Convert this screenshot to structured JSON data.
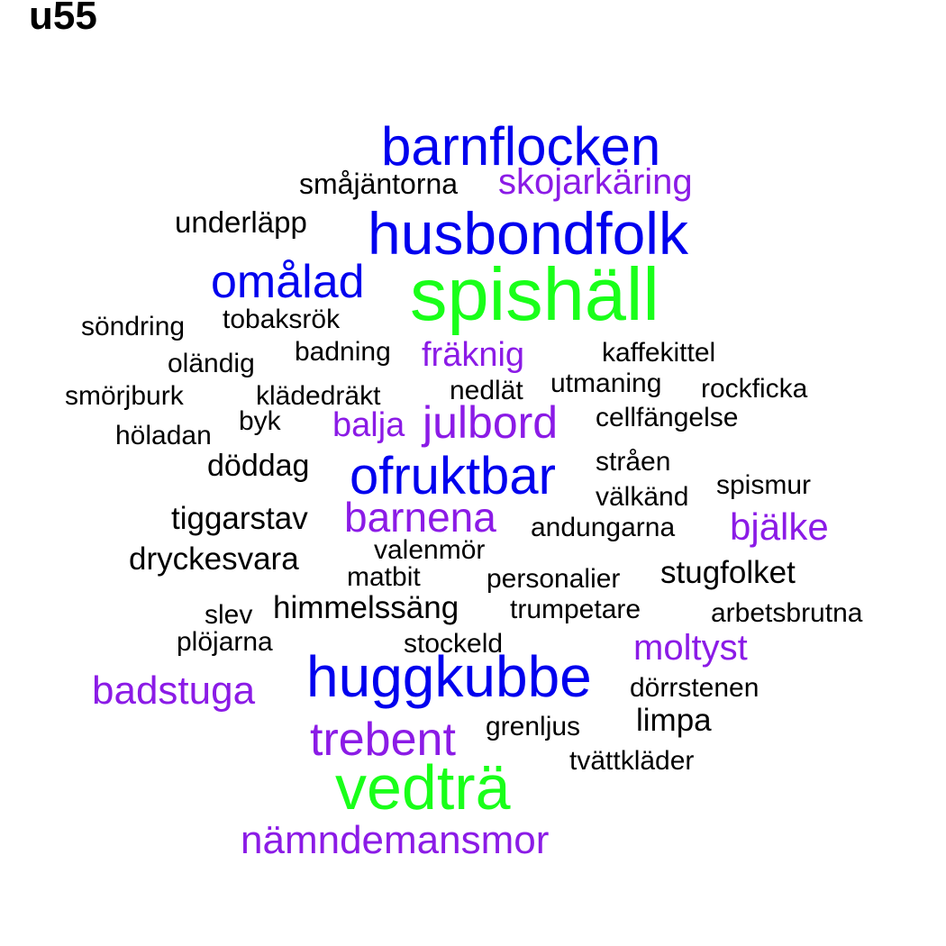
{
  "title": "u55",
  "colors": {
    "black": "#000000",
    "purple": "#8b1be6",
    "blue": "#0000ee",
    "green": "#19ff19"
  },
  "words": [
    {
      "text": "barnflocken",
      "color": "blue"
    },
    {
      "text": "småjäntorna",
      "color": "black"
    },
    {
      "text": "skojarkäring",
      "color": "purple"
    },
    {
      "text": "underläpp",
      "color": "black"
    },
    {
      "text": "husbondfolk",
      "color": "blue"
    },
    {
      "text": "omålad",
      "color": "blue"
    },
    {
      "text": "spishäll",
      "color": "green"
    },
    {
      "text": "söndring",
      "color": "black"
    },
    {
      "text": "tobaksrök",
      "color": "black"
    },
    {
      "text": "badning",
      "color": "black"
    },
    {
      "text": "fräknig",
      "color": "purple"
    },
    {
      "text": "kaffekittel",
      "color": "black"
    },
    {
      "text": "oländig",
      "color": "black"
    },
    {
      "text": "utmaning",
      "color": "black"
    },
    {
      "text": "rockficka",
      "color": "black"
    },
    {
      "text": "smörjburk",
      "color": "black"
    },
    {
      "text": "klädedräkt",
      "color": "black"
    },
    {
      "text": "nedlät",
      "color": "black"
    },
    {
      "text": "byk",
      "color": "black"
    },
    {
      "text": "balja",
      "color": "purple"
    },
    {
      "text": "julbord",
      "color": "purple"
    },
    {
      "text": "cellfängelse",
      "color": "black"
    },
    {
      "text": "höladan",
      "color": "black"
    },
    {
      "text": "döddag",
      "color": "black"
    },
    {
      "text": "ofruktbar",
      "color": "blue"
    },
    {
      "text": "stråen",
      "color": "black"
    },
    {
      "text": "spismur",
      "color": "black"
    },
    {
      "text": "välkänd",
      "color": "black"
    },
    {
      "text": "tiggarstav",
      "color": "black"
    },
    {
      "text": "barnena",
      "color": "purple"
    },
    {
      "text": "andungarna",
      "color": "black"
    },
    {
      "text": "bjälke",
      "color": "purple"
    },
    {
      "text": "valenmör",
      "color": "black"
    },
    {
      "text": "dryckesvara",
      "color": "black"
    },
    {
      "text": "matbit",
      "color": "black"
    },
    {
      "text": "personalier",
      "color": "black"
    },
    {
      "text": "stugfolket",
      "color": "black"
    },
    {
      "text": "himmelssäng",
      "color": "black"
    },
    {
      "text": "slev",
      "color": "black"
    },
    {
      "text": "trumpetare",
      "color": "black"
    },
    {
      "text": "arbetsbrutna",
      "color": "black"
    },
    {
      "text": "plöjarna",
      "color": "black"
    },
    {
      "text": "stockeld",
      "color": "black"
    },
    {
      "text": "moltyst",
      "color": "purple"
    },
    {
      "text": "huggkubbe",
      "color": "blue"
    },
    {
      "text": "badstuga",
      "color": "purple"
    },
    {
      "text": "dörrstenen",
      "color": "black"
    },
    {
      "text": "limpa",
      "color": "black"
    },
    {
      "text": "grenljus",
      "color": "black"
    },
    {
      "text": "trebent",
      "color": "purple"
    },
    {
      "text": "tvättkläder",
      "color": "black"
    },
    {
      "text": "vedträ",
      "color": "green"
    },
    {
      "text": "nämndemansmor",
      "color": "purple"
    }
  ]
}
